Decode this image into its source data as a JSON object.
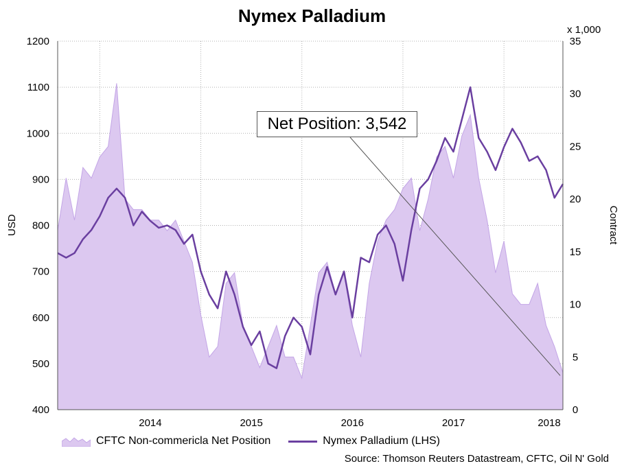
{
  "chart_data": {
    "type": "line",
    "title": "Nymex Palladium",
    "ylabel": "USD",
    "y2label": "Contract",
    "y2_multiplier_label": "x 1,000",
    "ylim": [
      400,
      1200
    ],
    "y2lim": [
      0,
      35
    ],
    "yticks": [
      "400",
      "500",
      "600",
      "700",
      "800",
      "900",
      "1000",
      "1100",
      "1200"
    ],
    "y2ticks": [
      "0",
      "5",
      "10",
      "15",
      "20",
      "25",
      "30",
      "35"
    ],
    "xticks": [
      "2014",
      "2015",
      "2016",
      "2017",
      "2018"
    ],
    "xlim": [
      "2013-08",
      "2018-08"
    ],
    "grid": true,
    "annotation": "Net Position: 3,542",
    "source": "Source: Thomson Reuters Datastream, CFTC, Oil N' Gold",
    "series": [
      {
        "name": "CFTC Non-commericla Net Position",
        "axis": "right",
        "kind": "area",
        "color": "#dcc8f0",
        "x": [
          "2013-08",
          "2013-09",
          "2013-10",
          "2013-11",
          "2013-12",
          "2014-01",
          "2014-02",
          "2014-03",
          "2014-04",
          "2014-05",
          "2014-06",
          "2014-07",
          "2014-08",
          "2014-09",
          "2014-10",
          "2014-11",
          "2014-12",
          "2015-01",
          "2015-02",
          "2015-03",
          "2015-04",
          "2015-05",
          "2015-06",
          "2015-07",
          "2015-08",
          "2015-09",
          "2015-10",
          "2015-11",
          "2015-12",
          "2016-01",
          "2016-02",
          "2016-03",
          "2016-04",
          "2016-05",
          "2016-06",
          "2016-07",
          "2016-08",
          "2016-09",
          "2016-10",
          "2016-11",
          "2016-12",
          "2017-01",
          "2017-02",
          "2017-03",
          "2017-04",
          "2017-05",
          "2017-06",
          "2017-07",
          "2017-08",
          "2017-09",
          "2017-10",
          "2017-11",
          "2017-12",
          "2018-01",
          "2018-02",
          "2018-03",
          "2018-04",
          "2018-05",
          "2018-06",
          "2018-07",
          "2018-08"
        ],
        "values": [
          17,
          22,
          18,
          23,
          22,
          24,
          25,
          31,
          20,
          19,
          19,
          18,
          18,
          17,
          18,
          16,
          14,
          9,
          5,
          6,
          12,
          13,
          8,
          6,
          4,
          6,
          8,
          5,
          5,
          3,
          8,
          13,
          14,
          11,
          13,
          8,
          5,
          12,
          16,
          18,
          19,
          21,
          22,
          17,
          20,
          24,
          25,
          22,
          26,
          28,
          22,
          18,
          13,
          16,
          11,
          10,
          10,
          12,
          8,
          6,
          3.5
        ]
      },
      {
        "name": "Nymex Palladium (LHS)",
        "axis": "left",
        "kind": "line",
        "color": "#6a3fa0",
        "x": [
          "2013-08",
          "2013-09",
          "2013-10",
          "2013-11",
          "2013-12",
          "2014-01",
          "2014-02",
          "2014-03",
          "2014-04",
          "2014-05",
          "2014-06",
          "2014-07",
          "2014-08",
          "2014-09",
          "2014-10",
          "2014-11",
          "2014-12",
          "2015-01",
          "2015-02",
          "2015-03",
          "2015-04",
          "2015-05",
          "2015-06",
          "2015-07",
          "2015-08",
          "2015-09",
          "2015-10",
          "2015-11",
          "2015-12",
          "2016-01",
          "2016-02",
          "2016-03",
          "2016-04",
          "2016-05",
          "2016-06",
          "2016-07",
          "2016-08",
          "2016-09",
          "2016-10",
          "2016-11",
          "2016-12",
          "2017-01",
          "2017-02",
          "2017-03",
          "2017-04",
          "2017-05",
          "2017-06",
          "2017-07",
          "2017-08",
          "2017-09",
          "2017-10",
          "2017-11",
          "2017-12",
          "2018-01",
          "2018-02",
          "2018-03",
          "2018-04",
          "2018-05",
          "2018-06",
          "2018-07",
          "2018-08"
        ],
        "values": [
          740,
          730,
          740,
          770,
          790,
          820,
          860,
          880,
          860,
          800,
          830,
          810,
          795,
          800,
          790,
          760,
          780,
          700,
          650,
          620,
          700,
          650,
          580,
          540,
          570,
          500,
          490,
          560,
          600,
          580,
          520,
          650,
          710,
          650,
          700,
          600,
          730,
          720,
          780,
          800,
          760,
          680,
          790,
          880,
          900,
          940,
          990,
          960,
          1030,
          1100,
          990,
          960,
          920,
          970,
          1010,
          980,
          940,
          950,
          920,
          860,
          890
        ]
      }
    ]
  },
  "colors": {
    "area_fill": "#dcc8f0",
    "area_stroke": "#c3a5e6",
    "line": "#6a3fa0",
    "grid": "#b0b0b0"
  },
  "legend": {
    "area_label": "CFTC Non-commericla Net Position",
    "line_label": "Nymex Palladium (LHS)"
  }
}
